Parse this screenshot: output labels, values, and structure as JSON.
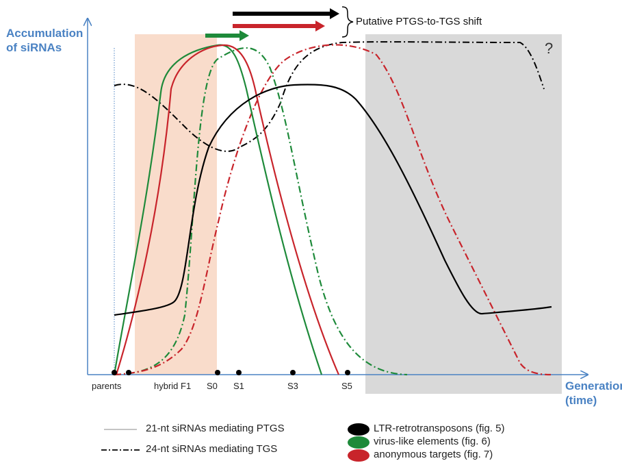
{
  "y_axis_title": [
    "Accumulation",
    "of siRNAs"
  ],
  "x_axis_title": [
    "Generation",
    "(time)"
  ],
  "stage_labels": [
    "parents",
    "hybrid F1",
    "S0",
    "S1",
    "S3",
    "S5"
  ],
  "shift_label": "Putative PTGS-to-TGS shift",
  "unknown_mark": "?",
  "legend": {
    "line_styles": [
      {
        "style": "solid",
        "label": "21-nt siRNAs mediating PTGS"
      },
      {
        "style": "dash-dot",
        "label": "24-nt siRNAs mediating TGS"
      }
    ],
    "colors": [
      {
        "color": "#000000",
        "label": "LTR-retrotransposons (fig. 5)"
      },
      {
        "color": "#1e8a3a",
        "label": "virus-like elements (fig. 6)"
      },
      {
        "color": "#c8242b",
        "label": "anonymous targets (fig. 7)"
      }
    ]
  },
  "colors": {
    "axis": "#4a82c3",
    "ltr": "#000000",
    "virus": "#1e8a3a",
    "anonymous": "#c8242b",
    "hybrid_band": "#f9dccb",
    "late_band": "#d9d9d9"
  }
}
